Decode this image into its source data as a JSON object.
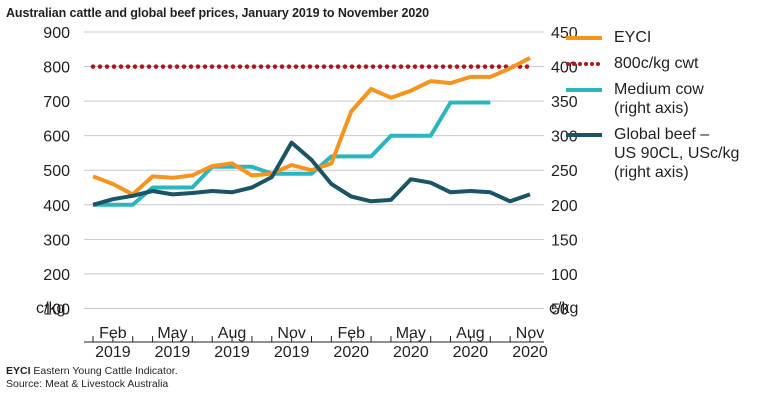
{
  "title": "Australian cattle and global beef prices, January 2019 to November 2020",
  "footnote": {
    "abbr": "EYCI",
    "abbr_text": " Eastern Young Cattle Indicator.",
    "source": "Source: Meat & Livestock Australia"
  },
  "chart_data": {
    "type": "line",
    "title": "Australian cattle and global beef prices, January 2019 to November 2020",
    "left_axis": {
      "unit_label": "c/kg",
      "ylim": [
        0,
        900
      ],
      "ticks": [
        400,
        500,
        600,
        700,
        800,
        900
      ]
    },
    "right_axis": {
      "unit_label": "c/kg",
      "ylim": [
        0,
        450
      ],
      "ticks": [
        50,
        100,
        150,
        200,
        250,
        300,
        350,
        400,
        450
      ]
    },
    "x_ticks": [
      {
        "month": "Feb",
        "year": "2019"
      },
      {
        "month": "May",
        "year": "2019"
      },
      {
        "month": "Aug",
        "year": "2019"
      },
      {
        "month": "Nov",
        "year": "2019"
      },
      {
        "month": "Feb",
        "year": "2020"
      },
      {
        "month": "May",
        "year": "2020"
      },
      {
        "month": "Aug",
        "year": "2020"
      },
      {
        "month": "Nov",
        "year": "2020"
      }
    ],
    "x_months": [
      "Jan 2019",
      "Feb 2019",
      "Mar 2019",
      "Apr 2019",
      "May 2019",
      "Jun 2019",
      "Jul 2019",
      "Aug 2019",
      "Sep 2019",
      "Oct 2019",
      "Nov 2019",
      "Dec 2019",
      "Jan 2020",
      "Feb 2020",
      "Mar 2020",
      "Apr 2020",
      "May 2020",
      "Jun 2020",
      "Jul 2020",
      "Aug 2020",
      "Sep 2020",
      "Oct 2020",
      "Nov 2020"
    ],
    "grid": true,
    "legend_position": "right",
    "series": [
      {
        "name": "EYCI",
        "axis": "left",
        "color": "#f7941d",
        "style": "solid",
        "values": [
          482,
          460,
          430,
          482,
          478,
          485,
          512,
          520,
          485,
          490,
          515,
          500,
          520,
          670,
          735,
          710,
          730,
          758,
          752,
          770,
          770,
          795,
          825
        ]
      },
      {
        "name": "800c/kg cwt",
        "axis": "left",
        "color": "#b5121b",
        "style": "dotted",
        "values": [
          800,
          800,
          800,
          800,
          800,
          800,
          800,
          800,
          800,
          800,
          800,
          800,
          800,
          800,
          800,
          800,
          800,
          800,
          800,
          800,
          800,
          800,
          800
        ]
      },
      {
        "name": "Medium cow",
        "name_line2": "(right axis)",
        "axis": "right",
        "color": "#2ab6c1",
        "style": "solid",
        "values": [
          200,
          200,
          200,
          225,
          225,
          225,
          255,
          255,
          255,
          245,
          245,
          245,
          270,
          270,
          270,
          300,
          300,
          300,
          348,
          348,
          348,
          null,
          null
        ]
      },
      {
        "name": "Global beef –",
        "name_line2": "US 90CL, USc/kg",
        "name_line3": "(right axis)",
        "axis": "right",
        "color": "#1a5465",
        "style": "solid",
        "values": [
          200,
          208,
          213,
          220,
          215,
          217,
          220,
          218,
          225,
          240,
          290,
          265,
          230,
          212,
          205,
          207,
          237,
          232,
          218,
          220,
          218,
          205,
          215
        ]
      }
    ]
  }
}
